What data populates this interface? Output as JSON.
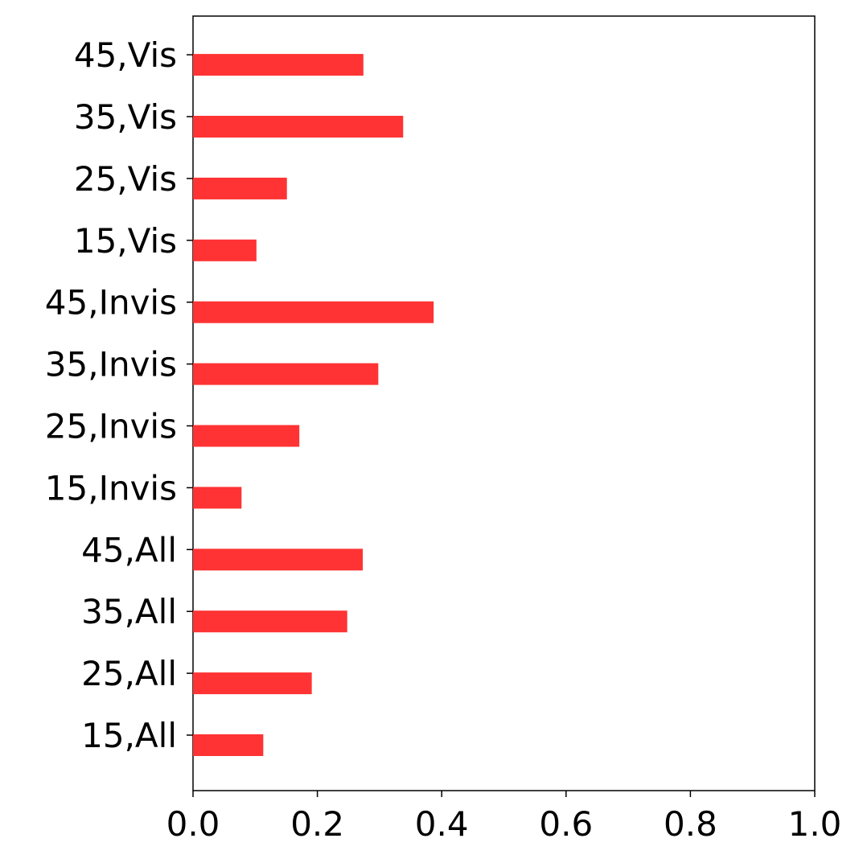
{
  "chart_data": {
    "type": "barh",
    "categories": [
      "15,All",
      "25,All",
      "35,All",
      "45,All",
      "15,Invis",
      "25,Invis",
      "35,Invis",
      "45,Invis",
      "15,Vis",
      "25,Vis",
      "35,Vis",
      "45,Vis"
    ],
    "values": [
      0.113,
      0.191,
      0.248,
      0.273,
      0.078,
      0.171,
      0.298,
      0.387,
      0.102,
      0.151,
      0.338,
      0.274
    ],
    "color": "#ff3333",
    "xlim": [
      0,
      1
    ],
    "xticks": [
      {
        "value": 0,
        "label": "0.0"
      },
      {
        "value": 0.2,
        "label": "0.2"
      },
      {
        "value": 0.4,
        "label": "0.4"
      },
      {
        "value": 0.6,
        "label": "0.6"
      },
      {
        "value": 0.8,
        "label": "0.8"
      },
      {
        "value": 1,
        "label": "1.0"
      }
    ]
  }
}
